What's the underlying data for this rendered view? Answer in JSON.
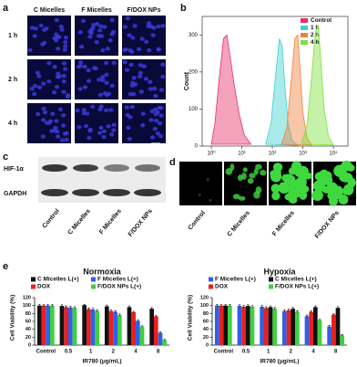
{
  "panels": {
    "a": {
      "letter": "a",
      "columns": [
        "C Micelles",
        "F Micelles",
        "F/DOX NPs"
      ],
      "rows": [
        "1 h",
        "2 h",
        "4 h"
      ]
    },
    "b": {
      "letter": "b"
    },
    "c": {
      "letter": "c",
      "bands": [
        "HIF-1α",
        "GAPDH"
      ],
      "lanes": [
        "Control",
        "C Micelles",
        "F Micelles",
        "F/DOX NPs"
      ]
    },
    "d": {
      "letter": "d",
      "columns": [
        "Control",
        "C Micelles",
        "F Micelles",
        "F/DOX NPs"
      ]
    },
    "e": {
      "letter": "e"
    }
  },
  "chart_data": [
    {
      "type": "area",
      "ylabel": "Count",
      "xscale": "log",
      "xlim": [
        0.5,
        30000
      ],
      "ylim": [
        0,
        350
      ],
      "yticks": [
        0,
        100,
        200,
        300
      ],
      "xticks": [
        {
          "value": 1,
          "label": "10⁰"
        },
        {
          "value": 10,
          "label": "10¹"
        },
        {
          "value": 100,
          "label": "10²"
        },
        {
          "value": 1000,
          "label": "10³"
        },
        {
          "value": 10000,
          "label": "10⁴"
        }
      ],
      "legend": "top-right",
      "series": [
        {
          "name": "Control",
          "color": "#e8306a",
          "x": [
            1,
            1.3,
            1.8,
            2.5,
            3.2,
            4,
            5.5,
            8,
            12,
            20
          ],
          "values": [
            5,
            60,
            180,
            290,
            300,
            250,
            170,
            90,
            30,
            5
          ]
        },
        {
          "name": "1 h",
          "color": "#40d0d0",
          "x": [
            60,
            90,
            130,
            170,
            210,
            260,
            330,
            450,
            700
          ],
          "values": [
            5,
            60,
            200,
            290,
            270,
            160,
            60,
            15,
            2
          ]
        },
        {
          "name": "2 h",
          "color": "#f08040",
          "x": [
            200,
            300,
            420,
            550,
            680,
            820,
            1000,
            1400,
            2000
          ],
          "values": [
            5,
            50,
            180,
            290,
            300,
            200,
            90,
            20,
            3
          ]
        },
        {
          "name": "4 h",
          "color": "#80e040",
          "x": [
            900,
            1400,
            2000,
            2600,
            3200,
            3900,
            5000,
            7000,
            10000
          ],
          "values": [
            5,
            60,
            200,
            310,
            325,
            230,
            100,
            25,
            3
          ]
        }
      ]
    },
    {
      "type": "bar",
      "title": "Normoxia",
      "xlabel": "IR780 (μg/mL)",
      "ylabel": "Cell Viability (%)",
      "categories": [
        "Control",
        "0.5",
        "1",
        "2",
        "4",
        "8"
      ],
      "ylim": [
        0,
        120
      ],
      "yticks": [
        0,
        20,
        40,
        60,
        80,
        100,
        120
      ],
      "series": [
        {
          "name": "C Micelles L(+)",
          "color": "#111111",
          "values": [
            100,
            99,
            101,
            98,
            96,
            92
          ],
          "errors": [
            3,
            3,
            2,
            3,
            3,
            3
          ]
        },
        {
          "name": "DOX",
          "color": "#e82020",
          "values": [
            100,
            96,
            91,
            86,
            83,
            73
          ],
          "errors": [
            3,
            3,
            3,
            3,
            2,
            2
          ]
        },
        {
          "name": "F Micelles L(+)",
          "color": "#3060e8",
          "values": [
            100,
            95,
            90,
            84,
            61,
            31
          ],
          "errors": [
            3,
            3,
            3,
            3,
            3,
            3
          ]
        },
        {
          "name": "F/DOX NPs L(+)",
          "color": "#40d040",
          "values": [
            100,
            94,
            86,
            76,
            47,
            13
          ],
          "errors": [
            3,
            3,
            3,
            3,
            2,
            2
          ]
        }
      ]
    },
    {
      "type": "bar",
      "title": "Hypoxia",
      "xlabel": "IR780 (μg/mL)",
      "ylabel": "Cell Viability (%)",
      "categories": [
        "Control",
        "0.5",
        "1",
        "2",
        "4",
        "8"
      ],
      "ylim": [
        0,
        120
      ],
      "yticks": [
        0,
        20,
        40,
        60,
        80,
        100,
        120
      ],
      "series": [
        {
          "name": "F Micelles L(+)",
          "color": "#3060e8",
          "values": [
            100,
            99,
            97,
            86,
            73,
            47
          ],
          "errors": [
            3,
            3,
            3,
            3,
            3,
            3
          ]
        },
        {
          "name": "DOX",
          "color": "#e82020",
          "values": [
            100,
            97,
            94,
            88,
            84,
            77
          ],
          "errors": [
            3,
            3,
            3,
            3,
            3,
            2
          ]
        },
        {
          "name": "C Micelles L(+)",
          "color": "#111111",
          "values": [
            100,
            99,
            96,
            92,
            96,
            94
          ],
          "errors": [
            3,
            3,
            3,
            3,
            3,
            3
          ]
        },
        {
          "name": "F/DOX NPs L(+)",
          "color": "#40d040",
          "values": [
            100,
            97,
            92,
            84,
            63,
            25
          ],
          "errors": [
            3,
            3,
            3,
            3,
            2,
            2
          ]
        }
      ]
    }
  ]
}
